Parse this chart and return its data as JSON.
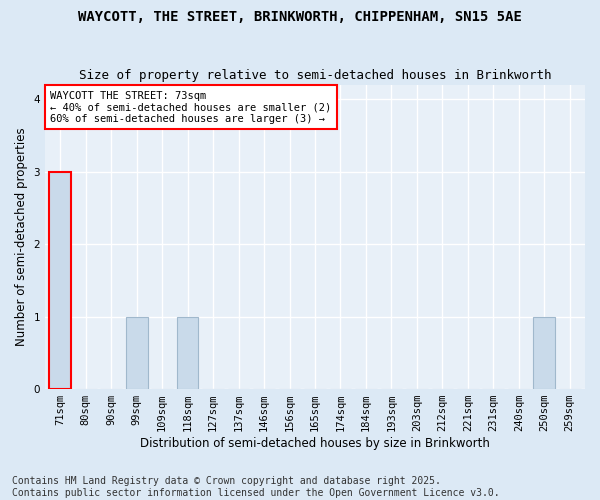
{
  "title_line1": "WAYCOTT, THE STREET, BRINKWORTH, CHIPPENHAM, SN15 5AE",
  "title_line2": "Size of property relative to semi-detached houses in Brinkworth",
  "xlabel": "Distribution of semi-detached houses by size in Brinkworth",
  "ylabel": "Number of semi-detached properties",
  "categories": [
    "71sqm",
    "80sqm",
    "90sqm",
    "99sqm",
    "109sqm",
    "118sqm",
    "127sqm",
    "137sqm",
    "146sqm",
    "156sqm",
    "165sqm",
    "174sqm",
    "184sqm",
    "193sqm",
    "203sqm",
    "212sqm",
    "221sqm",
    "231sqm",
    "240sqm",
    "250sqm",
    "259sqm"
  ],
  "values": [
    3,
    0,
    0,
    1,
    0,
    1,
    0,
    0,
    0,
    0,
    0,
    0,
    0,
    0,
    0,
    0,
    0,
    0,
    0,
    1,
    0
  ],
  "bar_color": "#c9daea",
  "bar_edge_color": "#a0b8cc",
  "highlight_bar_index": 0,
  "highlight_edge_color": "red",
  "annotation_box_text": "WAYCOTT THE STREET: 73sqm\n← 40% of semi-detached houses are smaller (2)\n60% of semi-detached houses are larger (3) →",
  "ylim": [
    0,
    4.2
  ],
  "yticks": [
    0,
    1,
    2,
    3,
    4
  ],
  "footer_text": "Contains HM Land Registry data © Crown copyright and database right 2025.\nContains public sector information licensed under the Open Government Licence v3.0.",
  "figure_bg_color": "#dce9f5",
  "plot_bg_color": "#e8f0f8",
  "grid_color": "#ffffff",
  "title_fontsize": 10,
  "subtitle_fontsize": 9,
  "axis_label_fontsize": 8.5,
  "tick_fontsize": 7.5,
  "footer_fontsize": 7
}
